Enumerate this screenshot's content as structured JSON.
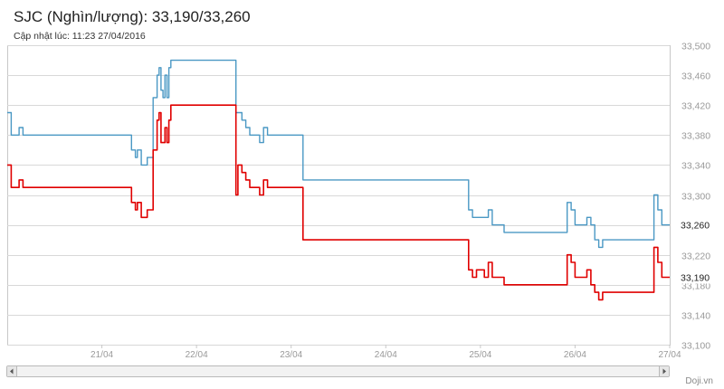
{
  "header": {
    "title": "SJC (Nghìn/lượng): 33,190/33,260",
    "updated": "Cập nhật lúc: 11:23 27/04/2016"
  },
  "footer": {
    "credit": "Doji.vn"
  },
  "colors": {
    "sell": "#4a98c4",
    "buy": "#e00000",
    "grid": "#d8d8d8",
    "axis_text": "#999999"
  },
  "icons": {
    "scroll_left": "arrow-left-icon",
    "scroll_right": "arrow-right-icon"
  },
  "chart_data": {
    "type": "line",
    "title": "SJC (Nghìn/lượng): 33,190/33,260",
    "subtitle": "Cập nhật lúc: 11:23 27/04/2016",
    "x_tick_labels": [
      "21/04",
      "22/04",
      "23/04",
      "24/04",
      "25/04",
      "26/04",
      "27/04"
    ],
    "xlim": [
      "20/04/2016 12:00",
      "27/04/2016 12:00"
    ],
    "ylim": [
      33100,
      33500
    ],
    "y_ticks": [
      33100,
      33140,
      33180,
      33220,
      33260,
      33300,
      33340,
      33380,
      33420,
      33460,
      33500
    ],
    "y_tick_labels": [
      "33,100",
      "33,140",
      "33,180",
      "33,220",
      "33,260",
      "33,300",
      "33,340",
      "33,380",
      "33,420",
      "33,460",
      "33,500"
    ],
    "grid": true,
    "y_axis_position": "right",
    "end_value_labels": [
      "33,260",
      "33,190"
    ],
    "series": [
      {
        "color": "#4a98c4",
        "step": true,
        "points": [
          [
            "20/04/2016 12:00",
            33410
          ],
          [
            "20/04/2016 13:00",
            33380
          ],
          [
            "20/04/2016 15:00",
            33390
          ],
          [
            "20/04/2016 16:00",
            33380
          ],
          [
            "21/04/2016 19:00",
            33380
          ],
          [
            "21/04/2016 19:30",
            33360
          ],
          [
            "21/04/2016 20:30",
            33350
          ],
          [
            "21/04/2016 21:00",
            33360
          ],
          [
            "21/04/2016 22:00",
            33340
          ],
          [
            "21/04/2016 23:30",
            33350
          ],
          [
            "22/04/2016 01:00",
            33430
          ],
          [
            "22/04/2016 02:00",
            33460
          ],
          [
            "22/04/2016 02:30",
            33470
          ],
          [
            "22/04/2016 03:00",
            33440
          ],
          [
            "22/04/2016 03:30",
            33430
          ],
          [
            "22/04/2016 04:00",
            33460
          ],
          [
            "22/04/2016 04:30",
            33430
          ],
          [
            "22/04/2016 05:00",
            33470
          ],
          [
            "22/04/2016 05:30",
            33480
          ],
          [
            "22/04/2016 22:00",
            33410
          ],
          [
            "22/04/2016 23:30",
            33400
          ],
          [
            "23/04/2016 00:30",
            33390
          ],
          [
            "23/04/2016 01:30",
            33380
          ],
          [
            "23/04/2016 04:00",
            33370
          ],
          [
            "23/04/2016 05:00",
            33390
          ],
          [
            "23/04/2016 06:00",
            33380
          ],
          [
            "23/04/2016 15:00",
            33320
          ],
          [
            "25/04/2016 09:00",
            33280
          ],
          [
            "25/04/2016 10:00",
            33270
          ],
          [
            "25/04/2016 11:00",
            33270
          ],
          [
            "25/04/2016 14:00",
            33280
          ],
          [
            "25/04/2016 15:00",
            33260
          ],
          [
            "25/04/2016 18:00",
            33250
          ],
          [
            "26/04/2016 10:00",
            33290
          ],
          [
            "26/04/2016 11:00",
            33280
          ],
          [
            "26/04/2016 12:00",
            33260
          ],
          [
            "26/04/2016 15:00",
            33270
          ],
          [
            "26/04/2016 16:00",
            33260
          ],
          [
            "26/04/2016 17:00",
            33240
          ],
          [
            "26/04/2016 18:00",
            33230
          ],
          [
            "26/04/2016 19:00",
            33240
          ],
          [
            "27/04/2016 08:00",
            33300
          ],
          [
            "27/04/2016 09:00",
            33280
          ],
          [
            "27/04/2016 10:00",
            33260
          ],
          [
            "27/04/2016 12:00",
            33260
          ]
        ]
      },
      {
        "color": "#e00000",
        "step": true,
        "points": [
          [
            "20/04/2016 12:00",
            33340
          ],
          [
            "20/04/2016 13:00",
            33310
          ],
          [
            "20/04/2016 15:00",
            33320
          ],
          [
            "20/04/2016 16:00",
            33310
          ],
          [
            "21/04/2016 19:00",
            33310
          ],
          [
            "21/04/2016 19:30",
            33290
          ],
          [
            "21/04/2016 20:30",
            33280
          ],
          [
            "21/04/2016 21:00",
            33290
          ],
          [
            "21/04/2016 22:00",
            33270
          ],
          [
            "21/04/2016 23:30",
            33280
          ],
          [
            "22/04/2016 01:00",
            33360
          ],
          [
            "22/04/2016 02:00",
            33400
          ],
          [
            "22/04/2016 02:30",
            33410
          ],
          [
            "22/04/2016 03:00",
            33370
          ],
          [
            "22/04/2016 04:00",
            33390
          ],
          [
            "22/04/2016 04:30",
            33370
          ],
          [
            "22/04/2016 05:00",
            33400
          ],
          [
            "22/04/2016 05:30",
            33420
          ],
          [
            "22/04/2016 22:00",
            33300
          ],
          [
            "22/04/2016 22:30",
            33340
          ],
          [
            "22/04/2016 23:30",
            33330
          ],
          [
            "23/04/2016 00:30",
            33320
          ],
          [
            "23/04/2016 01:30",
            33310
          ],
          [
            "23/04/2016 04:00",
            33300
          ],
          [
            "23/04/2016 05:00",
            33320
          ],
          [
            "23/04/2016 06:00",
            33310
          ],
          [
            "23/04/2016 15:00",
            33240
          ],
          [
            "25/04/2016 09:00",
            33200
          ],
          [
            "25/04/2016 10:00",
            33190
          ],
          [
            "25/04/2016 11:00",
            33200
          ],
          [
            "25/04/2016 13:00",
            33190
          ],
          [
            "25/04/2016 14:00",
            33210
          ],
          [
            "25/04/2016 15:00",
            33190
          ],
          [
            "25/04/2016 18:00",
            33180
          ],
          [
            "26/04/2016 10:00",
            33220
          ],
          [
            "26/04/2016 11:00",
            33210
          ],
          [
            "26/04/2016 12:00",
            33190
          ],
          [
            "26/04/2016 15:00",
            33200
          ],
          [
            "26/04/2016 16:00",
            33180
          ],
          [
            "26/04/2016 17:00",
            33170
          ],
          [
            "26/04/2016 18:00",
            33160
          ],
          [
            "26/04/2016 19:00",
            33170
          ],
          [
            "27/04/2016 08:00",
            33230
          ],
          [
            "27/04/2016 09:00",
            33210
          ],
          [
            "27/04/2016 10:00",
            33190
          ],
          [
            "27/04/2016 12:00",
            33190
          ]
        ]
      }
    ]
  }
}
